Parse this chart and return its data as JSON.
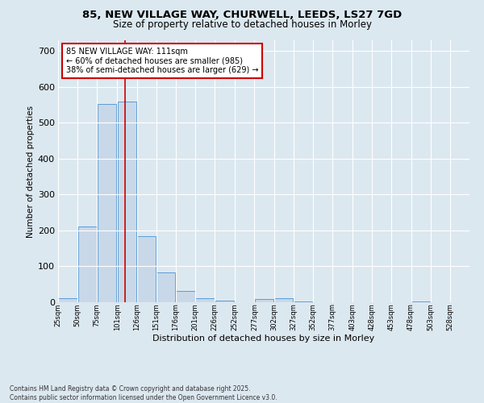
{
  "title_line1": "85, NEW VILLAGE WAY, CHURWELL, LEEDS, LS27 7GD",
  "title_line2": "Size of property relative to detached houses in Morley",
  "xlabel": "Distribution of detached houses by size in Morley",
  "ylabel": "Number of detached properties",
  "bar_left_edges": [
    25,
    50,
    75,
    101,
    126,
    151,
    176,
    201,
    226,
    252,
    277,
    302,
    327,
    352,
    377,
    403,
    428,
    453,
    478,
    503
  ],
  "bar_widths": [
    25,
    25,
    25,
    25,
    25,
    25,
    25,
    25,
    25,
    25,
    25,
    25,
    25,
    25,
    25,
    25,
    25,
    25,
    25,
    25
  ],
  "bar_heights": [
    12,
    211,
    553,
    560,
    185,
    82,
    32,
    12,
    5,
    0,
    8,
    12,
    2,
    0,
    0,
    0,
    0,
    0,
    3,
    0
  ],
  "bar_color": "#c8d8e8",
  "bar_edge_color": "#5b9bd5",
  "property_size": 111,
  "red_line_color": "#cc0000",
  "annotation_text": "85 NEW VILLAGE WAY: 111sqm\n← 60% of detached houses are smaller (985)\n38% of semi-detached houses are larger (629) →",
  "annotation_box_color": "#ffffff",
  "annotation_box_edge": "#cc0000",
  "yticks": [
    0,
    100,
    200,
    300,
    400,
    500,
    600,
    700
  ],
  "ylim": [
    0,
    730
  ],
  "xlim": [
    25,
    553
  ],
  "xtick_labels": [
    "25sqm",
    "50sqm",
    "75sqm",
    "101sqm",
    "126sqm",
    "151sqm",
    "176sqm",
    "201sqm",
    "226sqm",
    "252sqm",
    "277sqm",
    "302sqm",
    "327sqm",
    "352sqm",
    "377sqm",
    "403sqm",
    "428sqm",
    "453sqm",
    "478sqm",
    "503sqm",
    "528sqm"
  ],
  "background_color": "#dce8f0",
  "grid_color": "#ffffff",
  "footnote": "Contains HM Land Registry data © Crown copyright and database right 2025.\nContains public sector information licensed under the Open Government Licence v3.0."
}
